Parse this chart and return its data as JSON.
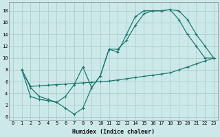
{
  "xlabel": "Humidex (Indice chaleur)",
  "bg_color": "#cce8e8",
  "grid_color": "#aacfcf",
  "line_color": "#1a7a6e",
  "xlim": [
    -0.5,
    23.5
  ],
  "ylim": [
    -0.5,
    19.5
  ],
  "xticks": [
    0,
    1,
    2,
    3,
    4,
    5,
    6,
    7,
    8,
    9,
    10,
    11,
    12,
    13,
    14,
    15,
    16,
    17,
    18,
    19,
    20,
    21,
    22,
    23
  ],
  "yticks": [
    0,
    2,
    4,
    6,
    8,
    10,
    12,
    14,
    16,
    18
  ],
  "curve1_x": [
    1,
    2,
    3,
    4,
    5,
    6,
    7,
    8,
    9,
    10,
    11,
    12,
    13,
    14,
    15,
    16,
    17,
    18,
    19,
    20,
    21,
    22,
    23
  ],
  "curve1_y": [
    8,
    5,
    3.5,
    3,
    2.5,
    1.5,
    0.5,
    1.5,
    5,
    7,
    11.5,
    11,
    14,
    17,
    18,
    18,
    18,
    18.2,
    18,
    16.5,
    14,
    12,
    10
  ],
  "curve2_x": [
    1,
    2,
    3,
    4,
    5,
    6,
    7,
    8,
    9,
    10,
    11,
    12,
    13,
    14,
    15,
    16,
    17,
    18,
    19,
    20,
    21,
    22,
    23
  ],
  "curve2_y": [
    8,
    5.2,
    5.3,
    5.4,
    5.5,
    5.6,
    5.7,
    5.8,
    5.9,
    6.0,
    6.1,
    6.3,
    6.5,
    6.7,
    6.9,
    7.1,
    7.3,
    7.5,
    8.0,
    8.5,
    9.0,
    9.5,
    10
  ],
  "curve3_x": [
    1,
    2,
    3,
    4,
    5,
    6,
    7,
    8,
    9,
    10,
    11,
    12,
    13,
    14,
    15,
    16,
    17,
    18,
    19,
    20,
    21,
    22,
    23
  ],
  "curve3_y": [
    8,
    3.5,
    3.0,
    2.8,
    2.5,
    3.5,
    5.5,
    8.5,
    5.0,
    7.0,
    11.5,
    11.5,
    13.0,
    15.5,
    17.5,
    18,
    18,
    18.2,
    16.5,
    14,
    12,
    10,
    10
  ]
}
